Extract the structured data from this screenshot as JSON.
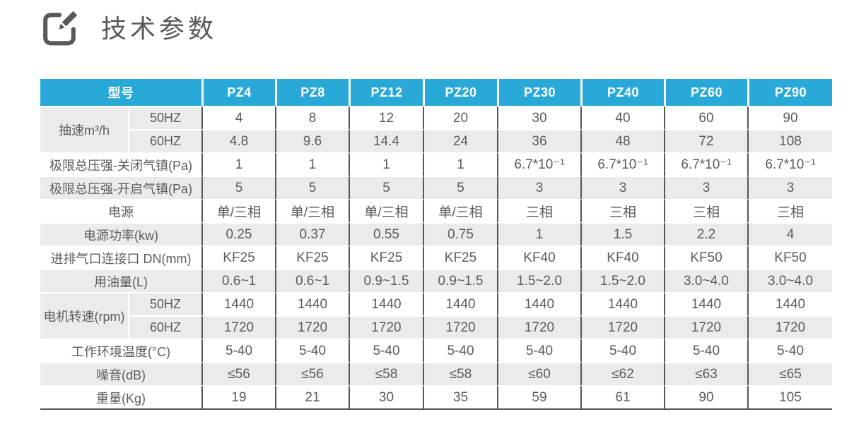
{
  "title": {
    "text": "技术参数",
    "icon": "edit-pencil-icon"
  },
  "colors": {
    "accent_cyan": "#29a9d8",
    "row_gray": "#ebebeb",
    "border_dark": "#54565a",
    "text_dark": "#58595b"
  },
  "table": {
    "corner_label": "型号",
    "models": [
      "PZ4",
      "PZ8",
      "PZ12",
      "PZ20",
      "PZ30",
      "PZ40",
      "PZ60",
      "PZ90"
    ],
    "rows": [
      {
        "group": {
          "label": "抽速m³/h",
          "span": 2
        },
        "sublabel": "50HZ",
        "values": [
          "4",
          "8",
          "12",
          "20",
          "30",
          "40",
          "60",
          "90"
        ]
      },
      {
        "sublabel": "60HZ",
        "values": [
          "4.8",
          "9.6",
          "14.4",
          "24",
          "36",
          "48",
          "72",
          "108"
        ]
      },
      {
        "label": "极限总压强-关闭气镇(Pa)",
        "values": [
          "1",
          "1",
          "1",
          "1",
          "6.7*10⁻¹",
          "6.7*10⁻¹",
          "6.7*10⁻¹",
          "6.7*10⁻¹"
        ]
      },
      {
        "label": "极限总压强-开启气镇(Pa)",
        "values": [
          "5",
          "5",
          "5",
          "5",
          "3",
          "3",
          "3",
          "3"
        ]
      },
      {
        "label": "电源",
        "values": [
          "单/三相",
          "单/三相",
          "单/三相",
          "单/三相",
          "三相",
          "三相",
          "三相",
          "三相"
        ]
      },
      {
        "label": "电源功率(kw)",
        "values": [
          "0.25",
          "0.37",
          "0.55",
          "0.75",
          "1",
          "1.5",
          "2.2",
          "4"
        ]
      },
      {
        "label": "进排气口连接口 DN(mm)",
        "values": [
          "KF25",
          "KF25",
          "KF25",
          "KF25",
          "KF40",
          "KF40",
          "KF50",
          "KF50"
        ]
      },
      {
        "label": "用油量(L)",
        "values": [
          "0.6~1",
          "0.6~1",
          "0.9~1.5",
          "0.9~1.5",
          "1.5~2.0",
          "1.5~2.0",
          "3.0~4.0",
          "3.0~4.0"
        ]
      },
      {
        "group": {
          "label": "电机转速(rpm)",
          "span": 2
        },
        "sublabel": "50HZ",
        "values": [
          "1440",
          "1440",
          "1440",
          "1440",
          "1440",
          "1440",
          "1440",
          "1440"
        ]
      },
      {
        "sublabel": "60HZ",
        "values": [
          "1720",
          "1720",
          "1720",
          "1720",
          "1720",
          "1720",
          "1720",
          "1720"
        ]
      },
      {
        "label": "工作环境温度(°C)",
        "values": [
          "5-40",
          "5-40",
          "5-40",
          "5-40",
          "5-40",
          "5-40",
          "5-40",
          "5-40"
        ]
      },
      {
        "label": "噪音(dB)",
        "values": [
          "≤56",
          "≤56",
          "≤58",
          "≤58",
          "≤60",
          "≤62",
          "≤63",
          "≤65"
        ]
      },
      {
        "label": "重量(Kg)",
        "values": [
          "19",
          "21",
          "30",
          "35",
          "59",
          "61",
          "90",
          "105"
        ]
      }
    ]
  }
}
